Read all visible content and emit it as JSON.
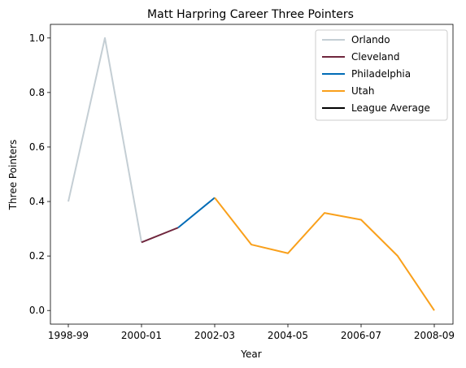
{
  "chart_data": {
    "type": "line",
    "title": "Matt Harpring Career Three Pointers",
    "xlabel": "Year",
    "ylabel": "Three Pointers",
    "x_ticks": [
      "1998-99",
      "2000-01",
      "2002-03",
      "2004-05",
      "2006-07",
      "2008-09"
    ],
    "y_ticks": [
      "0.0",
      "0.2",
      "0.4",
      "0.6",
      "0.8",
      "1.0"
    ],
    "ylim": [
      -0.05,
      1.05
    ],
    "grid": false,
    "legend_position": "top-right",
    "series": [
      {
        "name": "Orlando",
        "color": "#c4ced4",
        "points": [
          [
            0,
            0.4
          ],
          [
            1,
            1.0
          ],
          [
            2,
            0.25
          ]
        ]
      },
      {
        "name": "Cleveland",
        "color": "#6f263d",
        "points": [
          [
            2,
            0.25
          ],
          [
            3,
            0.304
          ]
        ]
      },
      {
        "name": "Philadelphia",
        "color": "#006bb6",
        "points": [
          [
            3,
            0.304
          ],
          [
            4,
            0.414
          ]
        ]
      },
      {
        "name": "Utah",
        "color": "#f9a01b",
        "points": [
          [
            4,
            0.414
          ],
          [
            5,
            0.242
          ],
          [
            6,
            0.21
          ],
          [
            7,
            0.358
          ],
          [
            8,
            0.333
          ],
          [
            9,
            0.2
          ],
          [
            10,
            0.0
          ]
        ]
      },
      {
        "name": "League Average",
        "color": "#000000",
        "points": []
      }
    ]
  }
}
